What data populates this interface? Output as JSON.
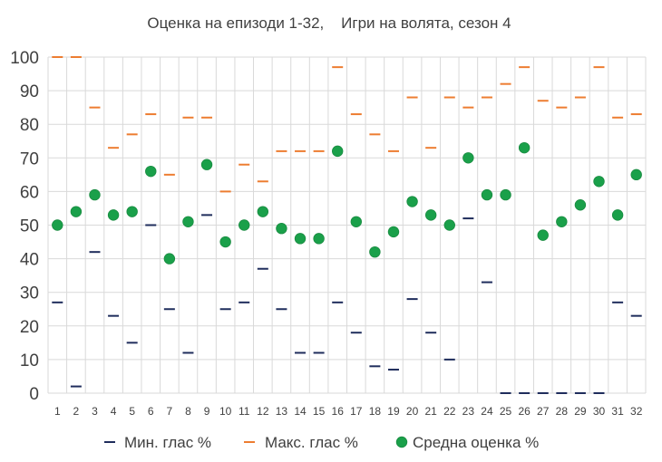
{
  "chart_data": {
    "type": "scatter",
    "title": "Оценка на епизоди 1-32,    Игри на волята, сезон 4",
    "xlabel": "",
    "ylabel": "",
    "categories": [
      "1",
      "2",
      "3",
      "4",
      "5",
      "6",
      "7",
      "8",
      "9",
      "10",
      "11",
      "12",
      "13",
      "14",
      "15",
      "16",
      "17",
      "18",
      "19",
      "20",
      "21",
      "22",
      "23",
      "24",
      "25",
      "26",
      "27",
      "28",
      "29",
      "30",
      "31",
      "32"
    ],
    "ylim": [
      0,
      100
    ],
    "yticks": [
      "0",
      "10",
      "20",
      "30",
      "40",
      "50",
      "60",
      "70",
      "80",
      "90",
      "100"
    ],
    "grid": true,
    "legend_position": "bottom",
    "series": [
      {
        "name": "Мин. глас %",
        "marker": "dash",
        "color": "#1f2d5c",
        "values": [
          27,
          2,
          42,
          23,
          15,
          50,
          25,
          12,
          53,
          25,
          27,
          37,
          25,
          12,
          12,
          27,
          18,
          8,
          7,
          28,
          18,
          10,
          52,
          33,
          0,
          0,
          0,
          0,
          0,
          0,
          27,
          23
        ]
      },
      {
        "name": "Макс. глас %",
        "marker": "dash",
        "color": "#ed7d31",
        "values": [
          100,
          100,
          85,
          73,
          77,
          83,
          65,
          82,
          82,
          60,
          68,
          63,
          72,
          72,
          72,
          97,
          83,
          77,
          72,
          88,
          73,
          88,
          85,
          88,
          92,
          97,
          87,
          85,
          88,
          97,
          82,
          83
        ]
      },
      {
        "name": "Средна оценка %",
        "marker": "circle",
        "color": "#1aa04a",
        "values": [
          50,
          54,
          59,
          53,
          54,
          66,
          40,
          51,
          68,
          45,
          50,
          54,
          49,
          46,
          46,
          72,
          51,
          42,
          48,
          57,
          53,
          50,
          70,
          59,
          59,
          73,
          47,
          51,
          56,
          63,
          53,
          65
        ]
      }
    ]
  }
}
